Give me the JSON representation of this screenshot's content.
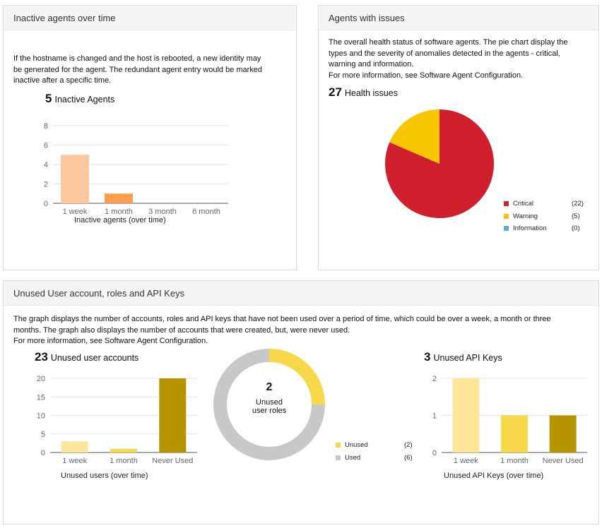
{
  "inactive": {
    "title": "Inactive agents over time",
    "description": [
      "If the hostname is changed and the host is rebooted, a new identity may",
      "be generated for the agent. The redundant agent entry would be marked",
      "inactive after a specific time."
    ],
    "count": "5",
    "count_label": "Inactive Agents",
    "xlabel": "Inactive agents (over time)"
  },
  "issues": {
    "title": "Agents with issues",
    "description": [
      "The overall health status of software agents. The pie chart display the",
      "types and the severity of anomalies detected in the agents - critical,",
      "warning and information.",
      "For more information, see Software Agent Configuration."
    ],
    "count": "27",
    "count_label": "Health issues",
    "legend": [
      {
        "label": "Critical",
        "count": "(22)",
        "color": "#d0202e"
      },
      {
        "label": "Warning",
        "count": "(5)",
        "color": "#f7c600"
      },
      {
        "label": "Information",
        "count": "(0)",
        "color": "#5aaedc"
      }
    ]
  },
  "unused": {
    "title": "Unused User account, roles and API Keys",
    "description": [
      "The graph displays the number of accounts, roles and API keys that have not been used over a period of time, which could be over a week, a month or three",
      "months. The graph also displays the number of accounts that were created, but, were never used.",
      "For more information, see Software Agent Configuration."
    ],
    "accounts": {
      "count": "23",
      "count_label": "Unused user accounts",
      "xlabel": "Unused users (over time)"
    },
    "roles": {
      "count": "2",
      "center_line1": "Unused",
      "center_line2": "user roles",
      "legend": [
        {
          "label": "Unused",
          "count": "(2)",
          "color": "#f7d84a"
        },
        {
          "label": "Used",
          "count": "(6)",
          "color": "#c8c8c8"
        }
      ]
    },
    "api": {
      "count": "3",
      "count_label": "Unused API Keys",
      "xlabel": "Unused API Keys (over time)"
    }
  },
  "chart_data": [
    {
      "type": "bar",
      "title": "Inactive Agents",
      "categories": [
        "1 week",
        "1 month",
        "3 month",
        "6 month"
      ],
      "values": [
        5,
        1,
        0,
        0
      ],
      "colors": [
        "#fdc89e",
        "#fb9e4e",
        "#fb9e4e",
        "#fb9e4e"
      ],
      "xlabel": "Inactive agents (over time)",
      "ylim": [
        0,
        8
      ],
      "yticks": [
        0,
        2,
        4,
        6,
        8
      ],
      "grid": true
    },
    {
      "type": "pie",
      "title": "Health issues",
      "categories": [
        "Critical",
        "Warning",
        "Information"
      ],
      "values": [
        22,
        5,
        0
      ],
      "colors": [
        "#d0202e",
        "#f7c600",
        "#5aaedc"
      ]
    },
    {
      "type": "bar",
      "title": "Unused user accounts",
      "categories": [
        "1 week",
        "1 month",
        "Never Used"
      ],
      "values": [
        3,
        1,
        20
      ],
      "colors": [
        "#fbe797",
        "#f7d84a",
        "#b59400"
      ],
      "xlabel": "Unused users (over time)",
      "ylim": [
        0,
        20
      ],
      "yticks": [
        0,
        5,
        10,
        15,
        20
      ],
      "grid": true
    },
    {
      "type": "pie",
      "title": "Unused user roles",
      "categories": [
        "Unused",
        "Used"
      ],
      "values": [
        2,
        6
      ],
      "colors": [
        "#f7d84a",
        "#c8c8c8"
      ]
    },
    {
      "type": "bar",
      "title": "Unused API Keys",
      "categories": [
        "1 week",
        "1 month",
        "Never Used"
      ],
      "values": [
        2,
        1,
        1
      ],
      "colors": [
        "#fbe797",
        "#f7d84a",
        "#b59400"
      ],
      "xlabel": "Unused API Keys (over time)",
      "ylim": [
        0,
        2
      ],
      "yticks": [
        0,
        1,
        2
      ],
      "grid": true
    }
  ]
}
